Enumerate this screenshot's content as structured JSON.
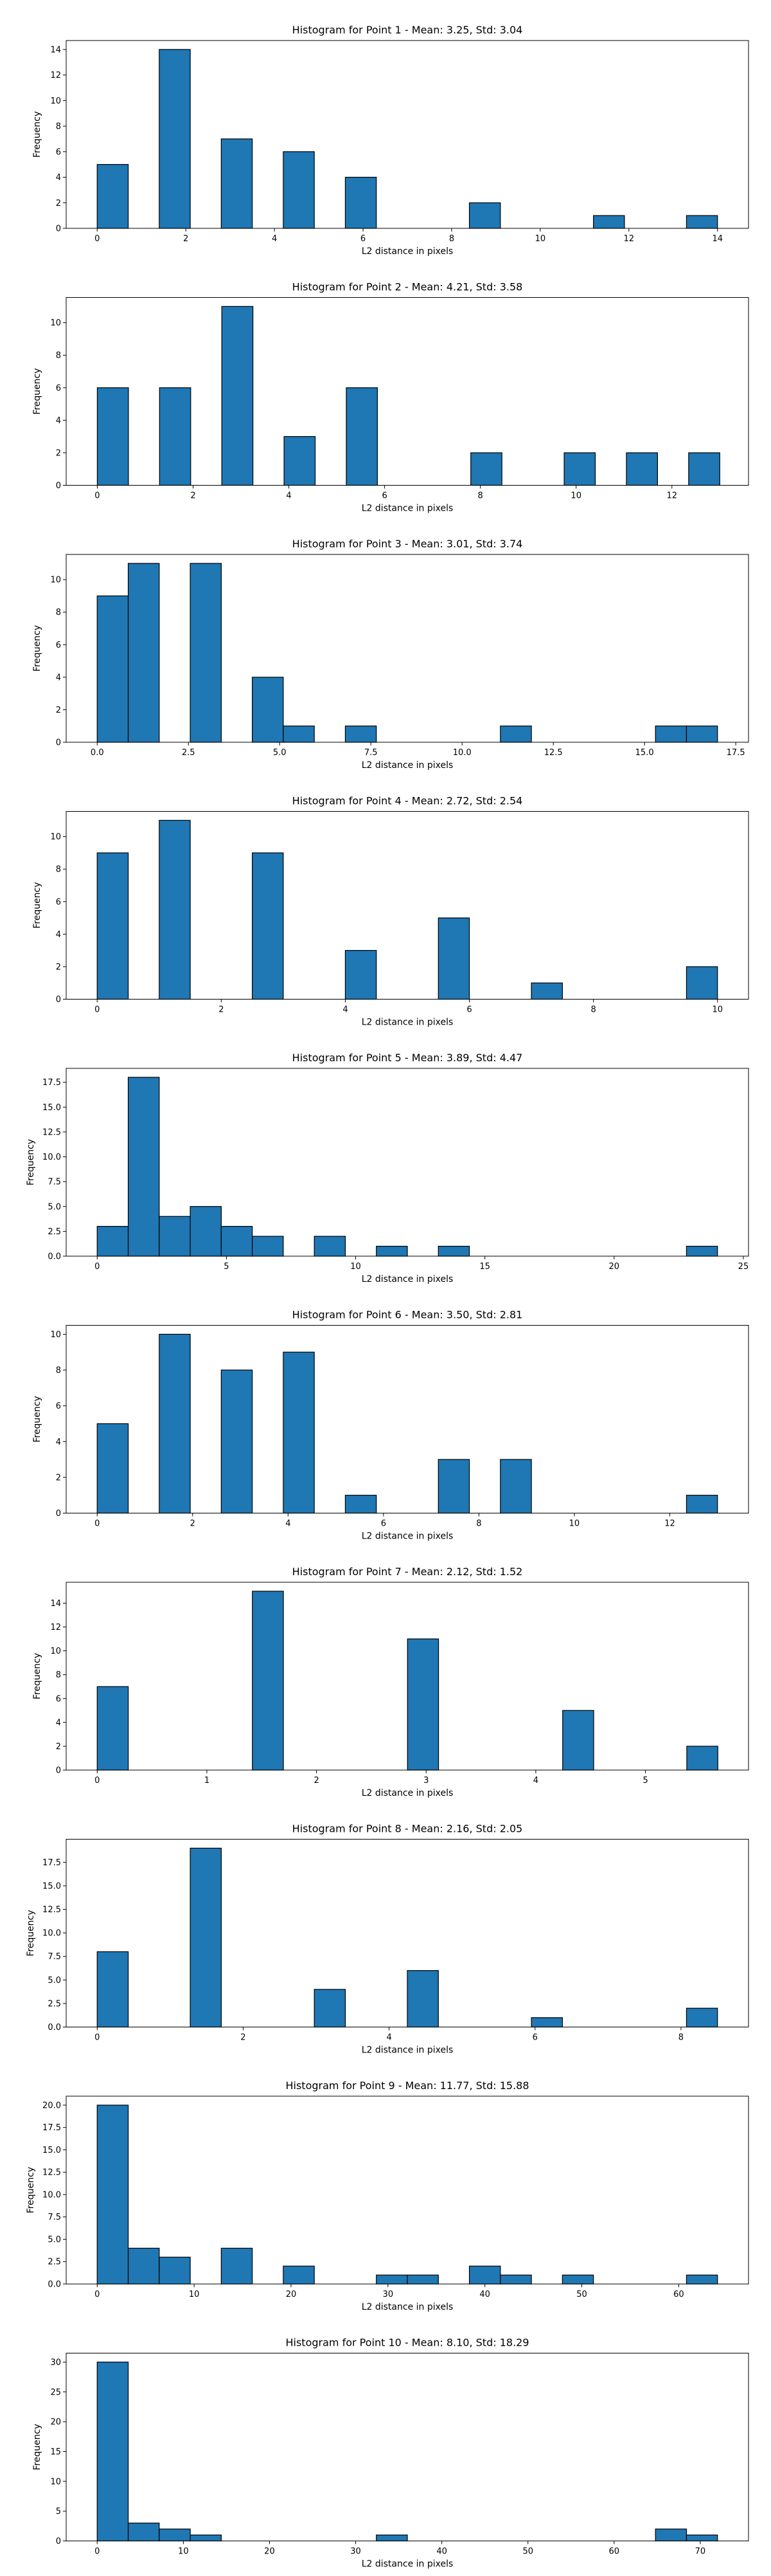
{
  "chart_data": [
    {
      "type": "bar",
      "title": "Histogram for Point 1 - Mean: 3.25, Std: 3.04",
      "xlabel": "L2 distance in pixels",
      "ylabel": "Frequency",
      "xlim": [
        -0.7,
        14.7
      ],
      "ylim": [
        0,
        14.7
      ],
      "xticks": [
        0,
        2,
        4,
        6,
        8,
        10,
        12,
        14
      ],
      "xtick_labels": [
        "0",
        "2",
        "4",
        "6",
        "8",
        "10",
        "12",
        "14"
      ],
      "yticks": [
        0,
        2,
        4,
        6,
        8,
        10,
        12,
        14
      ],
      "ytick_labels": [
        "0",
        "2",
        "4",
        "6",
        "8",
        "10",
        "12",
        "14"
      ],
      "bin_edges": [
        0,
        0.7,
        1.4,
        2.1,
        2.8,
        3.5,
        4.2,
        4.9,
        5.6,
        6.3,
        7.0,
        7.7,
        8.4,
        9.1,
        9.8,
        10.5,
        11.2,
        11.9,
        12.6,
        13.3,
        14.0
      ],
      "counts": [
        5,
        0,
        14,
        0,
        7,
        0,
        6,
        0,
        4,
        0,
        0,
        0,
        2,
        0,
        0,
        0,
        1,
        0,
        0,
        1
      ]
    },
    {
      "type": "bar",
      "title": "Histogram for Point 2 - Mean: 4.21, Std: 3.58",
      "xlabel": "L2 distance in pixels",
      "ylabel": "Frequency",
      "xlim": [
        -0.65,
        13.6
      ],
      "ylim": [
        0,
        11.55
      ],
      "xticks": [
        0,
        2,
        4,
        6,
        8,
        10,
        12
      ],
      "xtick_labels": [
        "0",
        "2",
        "4",
        "6",
        "8",
        "10",
        "12"
      ],
      "yticks": [
        0,
        2,
        4,
        6,
        8,
        10
      ],
      "ytick_labels": [
        "0",
        "2",
        "4",
        "6",
        "8",
        "10"
      ],
      "bin_edges": [
        0,
        0.65,
        1.3,
        1.95,
        2.6,
        3.25,
        3.9,
        4.55,
        5.2,
        5.85,
        6.5,
        7.15,
        7.8,
        8.45,
        9.1,
        9.75,
        10.4,
        11.05,
        11.7,
        12.35,
        13.0
      ],
      "counts": [
        6,
        0,
        6,
        0,
        11,
        0,
        3,
        0,
        6,
        0,
        0,
        0,
        2,
        0,
        0,
        2,
        0,
        2,
        0,
        2
      ]
    },
    {
      "type": "bar",
      "title": "Histogram for Point 3 - Mean: 3.01, Std: 3.74",
      "xlabel": "L2 distance in pixels",
      "ylabel": "Frequency",
      "xlim": [
        -0.85,
        17.85
      ],
      "ylim": [
        0,
        11.55
      ],
      "xticks": [
        0,
        2.5,
        5,
        7.5,
        10,
        12.5,
        15,
        17.5
      ],
      "xtick_labels": [
        "0.0",
        "2.5",
        "5.0",
        "7.5",
        "10.0",
        "12.5",
        "15.0",
        "17.5"
      ],
      "yticks": [
        0,
        2,
        4,
        6,
        8,
        10
      ],
      "ytick_labels": [
        "0",
        "2",
        "4",
        "6",
        "8",
        "10"
      ],
      "bin_edges": [
        0,
        0.85,
        1.7,
        2.55,
        3.4,
        4.25,
        5.1,
        5.95,
        6.8,
        7.65,
        8.5,
        9.35,
        10.2,
        11.05,
        11.9,
        12.75,
        13.6,
        14.45,
        15.3,
        16.15,
        17.0
      ],
      "counts": [
        9,
        11,
        0,
        11,
        0,
        4,
        1,
        0,
        1,
        0,
        0,
        0,
        0,
        1,
        0,
        0,
        0,
        0,
        1,
        1
      ]
    },
    {
      "type": "bar",
      "title": "Histogram for Point 4 - Mean: 2.72, Std: 2.54",
      "xlabel": "L2 distance in pixels",
      "ylabel": "Frequency",
      "xlim": [
        -0.5,
        10.5
      ],
      "ylim": [
        0,
        11.55
      ],
      "xticks": [
        0,
        2,
        4,
        6,
        8,
        10
      ],
      "xtick_labels": [
        "0",
        "2",
        "4",
        "6",
        "8",
        "10"
      ],
      "yticks": [
        0,
        2,
        4,
        6,
        8,
        10
      ],
      "ytick_labels": [
        "0",
        "2",
        "4",
        "6",
        "8",
        "10"
      ],
      "bin_edges": [
        0,
        0.5,
        1.0,
        1.5,
        2.0,
        2.5,
        3.0,
        3.5,
        4.0,
        4.5,
        5.0,
        5.5,
        6.0,
        6.5,
        7.0,
        7.5,
        8.0,
        8.5,
        9.0,
        9.5,
        10.0
      ],
      "counts": [
        9,
        0,
        11,
        0,
        0,
        9,
        0,
        0,
        3,
        0,
        0,
        5,
        0,
        0,
        1,
        0,
        0,
        0,
        0,
        2
      ]
    },
    {
      "type": "bar",
      "title": "Histogram for Point 5 - Mean: 3.89, Std: 4.47",
      "xlabel": "L2 distance in pixels",
      "ylabel": "Frequency",
      "xlim": [
        -1.2,
        25.2
      ],
      "ylim": [
        0,
        18.9
      ],
      "xticks": [
        0,
        5,
        10,
        15,
        20,
        25
      ],
      "xtick_labels": [
        "0",
        "5",
        "10",
        "15",
        "20",
        "25"
      ],
      "yticks": [
        0,
        2.5,
        5,
        7.5,
        10,
        12.5,
        15,
        17.5
      ],
      "ytick_labels": [
        "0.0",
        "2.5",
        "5.0",
        "7.5",
        "10.0",
        "12.5",
        "15.0",
        "17.5"
      ],
      "bin_edges": [
        0,
        1.2,
        2.4,
        3.6,
        4.8,
        6.0,
        7.2,
        8.4,
        9.6,
        10.8,
        12.0,
        13.2,
        14.4,
        15.6,
        16.8,
        18.0,
        19.2,
        20.4,
        21.6,
        22.8,
        24.0
      ],
      "counts": [
        3,
        18,
        4,
        5,
        3,
        2,
        0,
        2,
        0,
        1,
        0,
        1,
        0,
        0,
        0,
        0,
        0,
        0,
        0,
        1
      ]
    },
    {
      "type": "bar",
      "title": "Histogram for Point 6 - Mean: 3.50, Std: 2.81",
      "xlabel": "L2 distance in pixels",
      "ylabel": "Frequency",
      "xlim": [
        -0.65,
        13.65
      ],
      "ylim": [
        0,
        10.5
      ],
      "xticks": [
        0,
        2,
        4,
        6,
        8,
        10,
        12
      ],
      "xtick_labels": [
        "0",
        "2",
        "4",
        "6",
        "8",
        "10",
        "12"
      ],
      "yticks": [
        0,
        2,
        4,
        6,
        8,
        10
      ],
      "ytick_labels": [
        "0",
        "2",
        "4",
        "6",
        "8",
        "10"
      ],
      "bin_edges": [
        0,
        0.65,
        1.3,
        1.95,
        2.6,
        3.25,
        3.9,
        4.55,
        5.2,
        5.85,
        6.5,
        7.15,
        7.8,
        8.45,
        9.1,
        9.75,
        10.4,
        11.05,
        11.7,
        12.35,
        13.0
      ],
      "counts": [
        5,
        0,
        10,
        0,
        8,
        0,
        9,
        0,
        1,
        0,
        0,
        3,
        0,
        3,
        0,
        0,
        0,
        0,
        0,
        1
      ]
    },
    {
      "type": "bar",
      "title": "Histogram for Point 7 - Mean: 2.12, Std: 1.52",
      "xlabel": "L2 distance in pixels",
      "ylabel": "Frequency",
      "xlim": [
        -0.283,
        5.94
      ],
      "ylim": [
        0,
        15.75
      ],
      "xticks": [
        0,
        1,
        2,
        3,
        4,
        5
      ],
      "xtick_labels": [
        "0",
        "1",
        "2",
        "3",
        "4",
        "5"
      ],
      "yticks": [
        0,
        2,
        4,
        6,
        8,
        10,
        12,
        14
      ],
      "ytick_labels": [
        "0",
        "2",
        "4",
        "6",
        "8",
        "10",
        "12",
        "14"
      ],
      "bin_edges": [
        0,
        0.283,
        0.566,
        0.849,
        1.132,
        1.415,
        1.698,
        1.981,
        2.264,
        2.547,
        2.83,
        3.113,
        3.396,
        3.679,
        3.962,
        4.245,
        4.528,
        4.811,
        5.094,
        5.377,
        5.66
      ],
      "counts": [
        7,
        0,
        0,
        0,
        0,
        15,
        0,
        0,
        0,
        0,
        11,
        0,
        0,
        0,
        0,
        5,
        0,
        0,
        0,
        2
      ]
    },
    {
      "type": "bar",
      "title": "Histogram for Point 8 - Mean: 2.16, Std: 2.05",
      "xlabel": "L2 distance in pixels",
      "ylabel": "Frequency",
      "xlim": [
        -0.425,
        8.925
      ],
      "ylim": [
        0,
        19.95
      ],
      "xticks": [
        0,
        2,
        4,
        6,
        8
      ],
      "xtick_labels": [
        "0",
        "2",
        "4",
        "6",
        "8"
      ],
      "yticks": [
        0,
        2.5,
        5,
        7.5,
        10,
        12.5,
        15,
        17.5
      ],
      "ytick_labels": [
        "0.0",
        "2.5",
        "5.0",
        "7.5",
        "10.0",
        "12.5",
        "15.0",
        "17.5"
      ],
      "bin_edges": [
        0,
        0.425,
        0.85,
        1.275,
        1.7,
        2.125,
        2.55,
        2.975,
        3.4,
        3.825,
        4.25,
        4.675,
        5.1,
        5.525,
        5.95,
        6.375,
        6.8,
        7.225,
        7.65,
        8.075,
        8.5
      ],
      "counts": [
        8,
        0,
        0,
        19,
        0,
        0,
        0,
        4,
        0,
        0,
        6,
        0,
        0,
        0,
        1,
        0,
        0,
        0,
        0,
        2
      ]
    },
    {
      "type": "bar",
      "title": "Histogram for Point 9 - Mean: 11.77, Std: 15.88",
      "xlabel": "L2 distance in pixels",
      "ylabel": "Frequency",
      "xlim": [
        -3.2,
        67.2
      ],
      "ylim": [
        0,
        21.0
      ],
      "xticks": [
        0,
        10,
        20,
        30,
        40,
        50,
        60
      ],
      "xtick_labels": [
        "0",
        "10",
        "20",
        "30",
        "40",
        "50",
        "60"
      ],
      "yticks": [
        0,
        2.5,
        5,
        7.5,
        10,
        12.5,
        15,
        17.5,
        20
      ],
      "ytick_labels": [
        "0.0",
        "2.5",
        "5.0",
        "7.5",
        "10.0",
        "12.5",
        "15.0",
        "17.5",
        "20.0"
      ],
      "bin_edges": [
        0,
        3.2,
        6.4,
        9.6,
        12.8,
        16.0,
        19.2,
        22.4,
        25.6,
        28.8,
        32.0,
        35.2,
        38.4,
        41.6,
        44.8,
        48.0,
        51.2,
        54.4,
        57.6,
        60.8,
        64.0
      ],
      "counts": [
        20,
        4,
        3,
        0,
        4,
        0,
        2,
        0,
        0,
        1,
        1,
        0,
        2,
        1,
        0,
        1,
        0,
        0,
        0,
        1
      ]
    },
    {
      "type": "bar",
      "title": "Histogram for Point 10 - Mean: 8.10, Std: 18.29",
      "xlabel": "L2 distance in pixels",
      "ylabel": "Frequency",
      "xlim": [
        -3.6,
        75.6
      ],
      "ylim": [
        0,
        31.5
      ],
      "xticks": [
        0,
        10,
        20,
        30,
        40,
        50,
        60,
        70
      ],
      "xtick_labels": [
        "0",
        "10",
        "20",
        "30",
        "40",
        "50",
        "60",
        "70"
      ],
      "yticks": [
        0,
        5,
        10,
        15,
        20,
        25,
        30
      ],
      "ytick_labels": [
        "0",
        "5",
        "10",
        "15",
        "20",
        "25",
        "30"
      ],
      "bin_edges": [
        0,
        3.6,
        7.2,
        10.8,
        14.4,
        18.0,
        21.6,
        25.2,
        28.8,
        32.4,
        36.0,
        39.6,
        43.2,
        46.8,
        50.4,
        54.0,
        57.6,
        61.2,
        64.8,
        68.4,
        72.0
      ],
      "counts": [
        30,
        3,
        2,
        1,
        0,
        0,
        0,
        0,
        0,
        1,
        0,
        0,
        0,
        0,
        0,
        0,
        0,
        0,
        2,
        1
      ]
    }
  ],
  "colors": {
    "bar_fill": "#1f77b4",
    "bar_edge": "#000000",
    "axis": "#000000"
  }
}
